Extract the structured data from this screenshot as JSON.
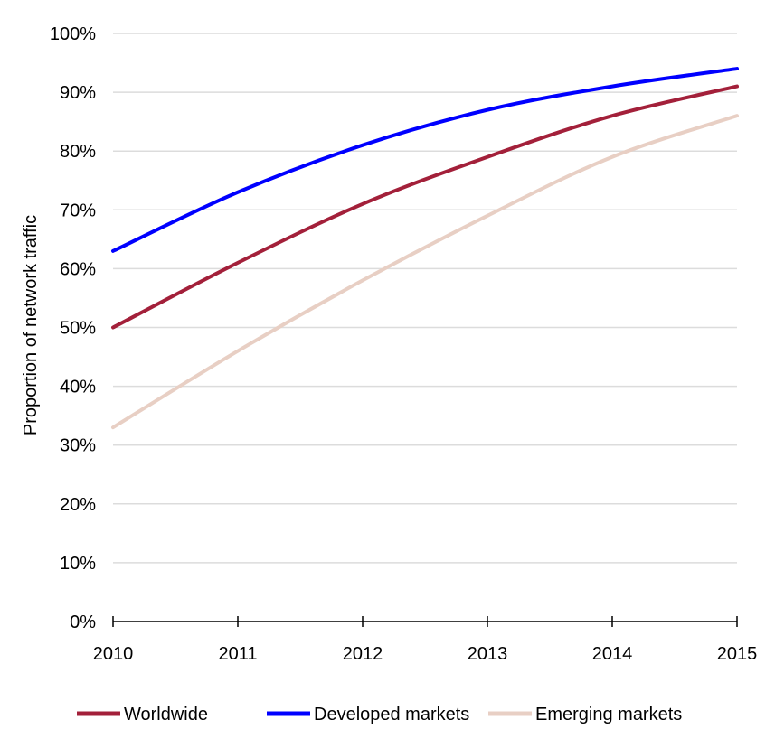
{
  "chart_data": {
    "type": "line",
    "title": "",
    "xlabel": "",
    "ylabel": "Proportion of network traffic",
    "x": [
      "2010",
      "2011",
      "2012",
      "2013",
      "2014",
      "2015"
    ],
    "ylim": [
      0,
      100
    ],
    "yticks": [
      "0%",
      "10%",
      "20%",
      "30%",
      "40%",
      "50%",
      "60%",
      "70%",
      "80%",
      "90%",
      "100%"
    ],
    "grid": "horizontal",
    "legend_position": "bottom",
    "series": [
      {
        "name": "Worldwide",
        "color": "#a3203a",
        "values": [
          50,
          61,
          71,
          79,
          86,
          91
        ]
      },
      {
        "name": "Developed markets",
        "color": "#0000ff",
        "values": [
          63,
          73,
          81,
          87,
          91,
          94
        ]
      },
      {
        "name": "Emerging markets",
        "color": "#e8cfc4",
        "values": [
          33,
          46,
          58,
          69,
          79,
          86
        ]
      }
    ]
  }
}
